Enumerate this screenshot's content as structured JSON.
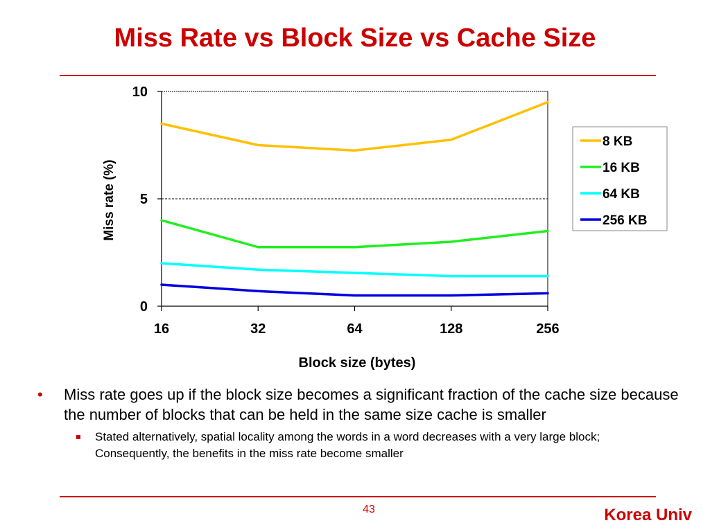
{
  "slide": {
    "title": "Miss Rate vs Block Size vs Cache Size",
    "bullet_main": "Miss rate goes up if the block size becomes a significant fraction of the cache size because the number of blocks that can be held in the same size cache is smaller",
    "bullet_sub": "Stated alternatively, spatial locality among the words in a word decreases with a very large block; Consequently, the benefits in the miss rate become smaller",
    "page_number": "43",
    "footer": "Korea Univ",
    "accent_color": "#cc0000",
    "bullet_icon": "bullet-dot-icon",
    "sub_bullet_icon": "square-bullet-icon"
  },
  "chart_data": {
    "type": "line",
    "title": "",
    "xlabel": "Block size (bytes)",
    "ylabel": "Miss rate (%)",
    "categories": [
      "16",
      "32",
      "64",
      "128",
      "256"
    ],
    "ylim": [
      0,
      10
    ],
    "yticks": [
      0,
      5,
      10
    ],
    "grid": "dashed gridline at 5",
    "legend_position": "right",
    "series": [
      {
        "name": "8 KB",
        "color": "#ffc000",
        "values": [
          8.5,
          7.5,
          7.25,
          7.75,
          9.5
        ]
      },
      {
        "name": "16 KB",
        "color": "#22ee22",
        "values": [
          4.0,
          2.75,
          2.75,
          3.0,
          3.5
        ]
      },
      {
        "name": "64 KB",
        "color": "#00ffff",
        "values": [
          2.0,
          1.7,
          1.55,
          1.4,
          1.4
        ]
      },
      {
        "name": "256 KB",
        "color": "#0000dd",
        "values": [
          1.0,
          0.7,
          0.5,
          0.5,
          0.6
        ]
      }
    ]
  }
}
